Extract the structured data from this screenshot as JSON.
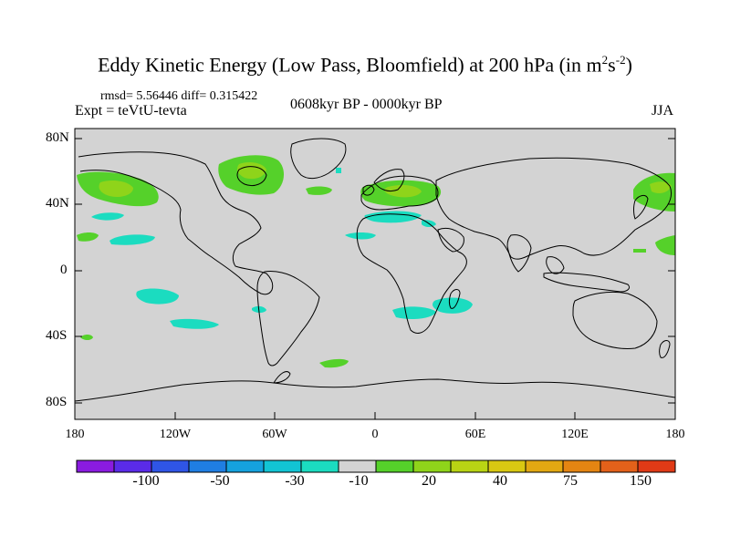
{
  "title_main": "Eddy Kinetic Energy (Low Pass, Bloomfield) at 200 hPa (in m",
  "title_sup1": "2",
  "title_mid": "s",
  "title_sup2": "-2",
  "title_end": ")",
  "stats": "rmsd= 5.56446 diff= 0.315422",
  "expt": "Expt = teVtU-tevta",
  "period": "0608kyr BP - 0000kyr BP",
  "season": "JJA",
  "lat_labels": [
    "80N",
    "40N",
    "0",
    "40S",
    "80S"
  ],
  "lon_labels": [
    "180",
    "120W",
    "60W",
    "0",
    "60E",
    "120E",
    "180"
  ],
  "colorbar": {
    "labels": [
      "-100",
      "-50",
      "-30",
      "-10",
      "20",
      "40",
      "75",
      "150"
    ],
    "colors": [
      "#8a1be0",
      "#5a2be8",
      "#2f55e6",
      "#1f7ee2",
      "#15a2de",
      "#12c4d4",
      "#1bdcc0",
      "#d3d3d3",
      "#55d12a",
      "#8fd41a",
      "#b9d414",
      "#d9c812",
      "#e2a812",
      "#e48512",
      "#e3611a",
      "#e03a16"
    ]
  },
  "colors": {
    "land_bg": "#d3d3d3",
    "positive_low": "#55d12a",
    "positive_mid": "#8fd41a",
    "negative_low": "#1bdcc0"
  }
}
